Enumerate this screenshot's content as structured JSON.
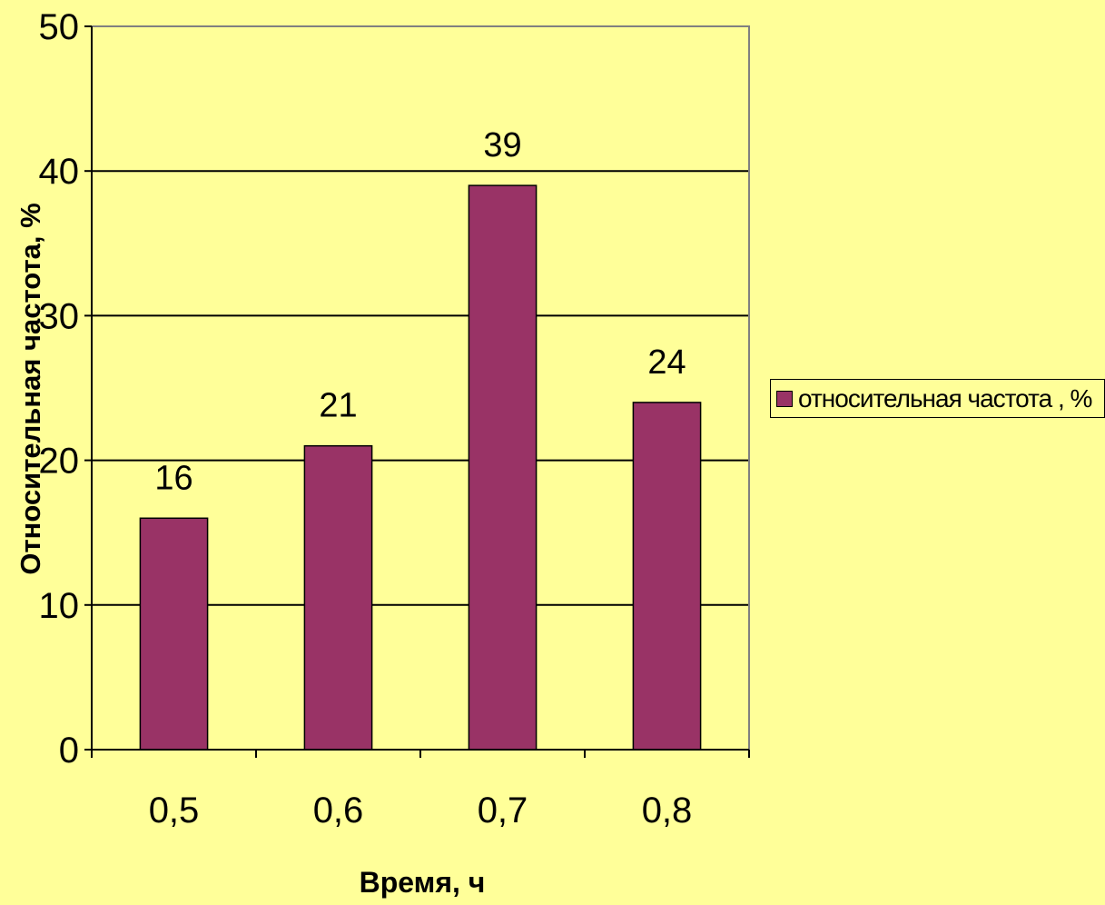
{
  "chart_data": {
    "type": "bar",
    "categories": [
      "0,5",
      "0,6",
      "0,7",
      "0,8"
    ],
    "series": [
      {
        "name": "относительная частота , %",
        "values": [
          16,
          21,
          39,
          24
        ],
        "color": "#993366"
      }
    ],
    "data_labels": [
      "16",
      "21",
      "39",
      "24"
    ],
    "xlabel": "Время, ч",
    "ylabel": "Относительная частота, %",
    "ylim": [
      0,
      50
    ],
    "yticks": [
      0,
      10,
      20,
      30,
      40,
      50
    ],
    "grid": true,
    "legend_position": "right",
    "background_color": "#ffff99"
  }
}
